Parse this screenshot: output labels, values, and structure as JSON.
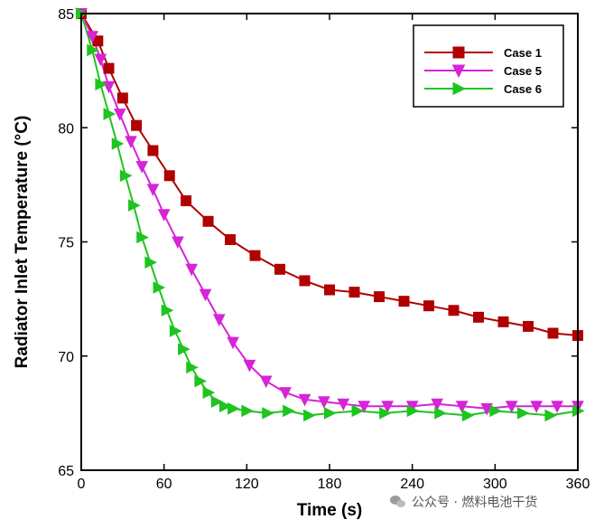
{
  "chart_data": {
    "type": "line",
    "xlabel": "Time (s)",
    "ylabel": "Radiator Inlet Temperature (°C)",
    "xlim": [
      0,
      360
    ],
    "ylim": [
      65,
      85
    ],
    "xticks": [
      0,
      60,
      120,
      180,
      240,
      300,
      360
    ],
    "yticks": [
      65,
      70,
      75,
      80,
      85
    ],
    "grid": false,
    "legend_position": "top-right",
    "series": [
      {
        "name": "Case 1",
        "color": "#b00000",
        "marker": "square",
        "x": [
          0,
          12,
          20,
          30,
          40,
          52,
          64,
          76,
          92,
          108,
          126,
          144,
          162,
          180,
          198,
          216,
          234,
          252,
          270,
          288,
          306,
          324,
          342,
          360
        ],
        "y": [
          85,
          83.8,
          82.6,
          81.3,
          80.1,
          79.0,
          77.9,
          76.8,
          75.9,
          75.1,
          74.4,
          73.8,
          73.3,
          72.9,
          72.8,
          72.6,
          72.4,
          72.2,
          72.0,
          71.7,
          71.5,
          71.3,
          71.0,
          70.9
        ]
      },
      {
        "name": "Case 5",
        "color": "#d624d6",
        "marker": "triangle-down",
        "x": [
          0,
          8,
          14,
          20,
          28,
          36,
          44,
          52,
          60,
          70,
          80,
          90,
          100,
          110,
          122,
          134,
          148,
          162,
          176,
          190,
          205,
          222,
          240,
          258,
          276,
          294,
          312,
          330,
          345,
          360
        ],
        "y": [
          85,
          84.0,
          83.0,
          81.8,
          80.6,
          79.4,
          78.3,
          77.3,
          76.2,
          75.0,
          73.8,
          72.7,
          71.6,
          70.6,
          69.6,
          68.9,
          68.4,
          68.1,
          68.0,
          67.9,
          67.8,
          67.8,
          67.8,
          67.9,
          67.8,
          67.7,
          67.8,
          67.8,
          67.8,
          67.8
        ]
      },
      {
        "name": "Case 6",
        "color": "#1fc41f",
        "marker": "triangle-right",
        "x": [
          0,
          8,
          14,
          20,
          26,
          32,
          38,
          44,
          50,
          56,
          62,
          68,
          74,
          80,
          86,
          92,
          98,
          104,
          110,
          120,
          135,
          150,
          165,
          180,
          200,
          220,
          240,
          260,
          280,
          300,
          320,
          340,
          360
        ],
        "y": [
          85,
          83.4,
          81.9,
          80.6,
          79.3,
          77.9,
          76.6,
          75.2,
          74.1,
          73.0,
          72.0,
          71.1,
          70.3,
          69.5,
          68.9,
          68.4,
          68.0,
          67.8,
          67.7,
          67.6,
          67.5,
          67.6,
          67.4,
          67.5,
          67.6,
          67.5,
          67.6,
          67.5,
          67.4,
          67.6,
          67.5,
          67.4,
          67.6
        ]
      }
    ]
  },
  "watermark": {
    "text": "公众号 · 燃料电池干货",
    "icon": "wechat-icon"
  }
}
